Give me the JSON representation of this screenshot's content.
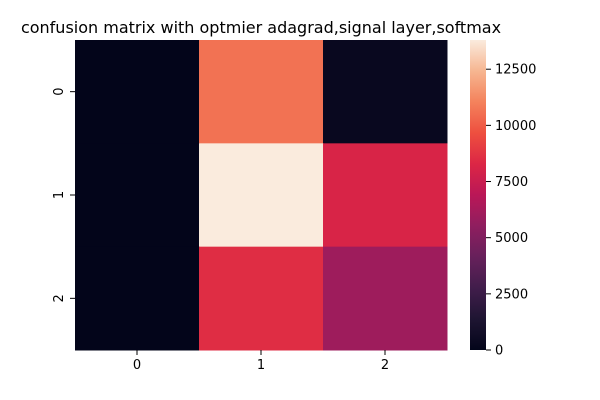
{
  "chart_data": {
    "type": "heatmap",
    "title": "confusion matrix with optmier adagrad,signal layer,softmax",
    "xlabel": "",
    "ylabel": "",
    "x_tick_labels": [
      "0",
      "1",
      "2"
    ],
    "y_tick_labels": [
      "0",
      "1",
      "2"
    ],
    "values": [
      [
        0,
        10600,
        300
      ],
      [
        0,
        13800,
        8100
      ],
      [
        0,
        8500,
        6000
      ]
    ],
    "colorbar": {
      "range": [
        0,
        13800
      ],
      "ticks": [
        0,
        2500,
        5000,
        7500,
        10000,
        12500
      ],
      "tick_labels": [
        "0",
        "2500",
        "5000",
        "7500",
        "10000",
        "12500"
      ],
      "colormap": "rocket"
    },
    "grid": false
  }
}
